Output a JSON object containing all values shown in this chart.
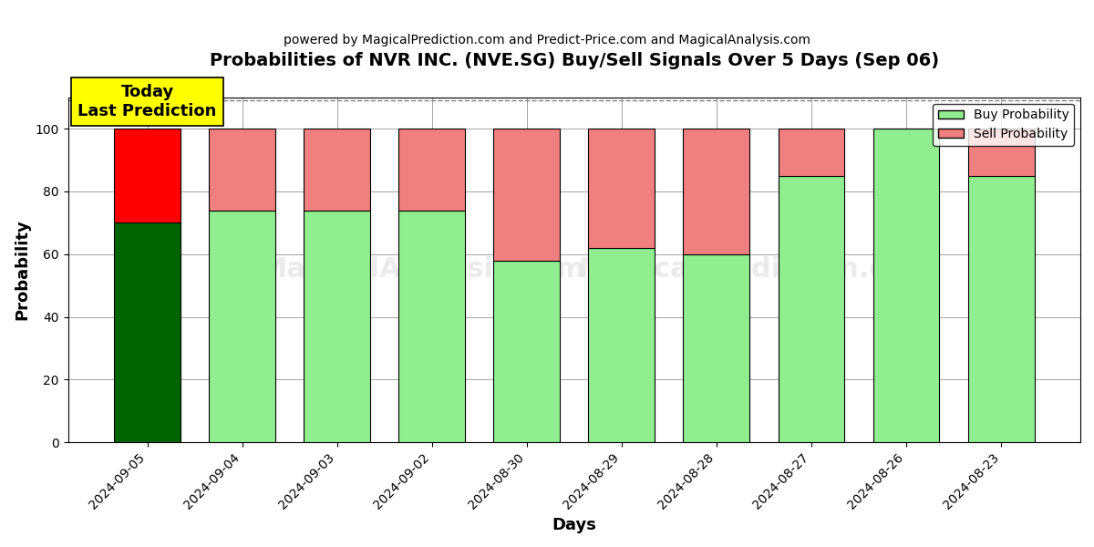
{
  "title": "Probabilities of NVR INC. (NVE.SG) Buy/Sell Signals Over 5 Days (Sep 06)",
  "subtitle": "powered by MagicalPrediction.com and Predict-Price.com and MagicalAnalysis.com",
  "xlabel": "Days",
  "ylabel": "Probability",
  "dates": [
    "2024-09-05",
    "2024-09-04",
    "2024-09-03",
    "2024-09-02",
    "2024-08-30",
    "2024-08-29",
    "2024-08-28",
    "2024-08-27",
    "2024-08-26",
    "2024-08-23"
  ],
  "buy_values": [
    70,
    74,
    74,
    74,
    58,
    62,
    60,
    85,
    100,
    85
  ],
  "sell_values": [
    30,
    26,
    26,
    26,
    42,
    38,
    40,
    15,
    0,
    15
  ],
  "today_buy_color": "#006400",
  "today_sell_color": "#ff0000",
  "buy_color": "#90ee90",
  "sell_color": "#f08080",
  "bar_edge_color": "#000000",
  "today_annotation": "Today\nLast Prediction",
  "ylim": [
    0,
    110
  ],
  "dashed_line_y": 109,
  "watermark_texts": [
    "MagicalAnalysis.com",
    "MagicalPrediction.com"
  ],
  "figsize": [
    12.0,
    6.0
  ],
  "dpi": 100
}
